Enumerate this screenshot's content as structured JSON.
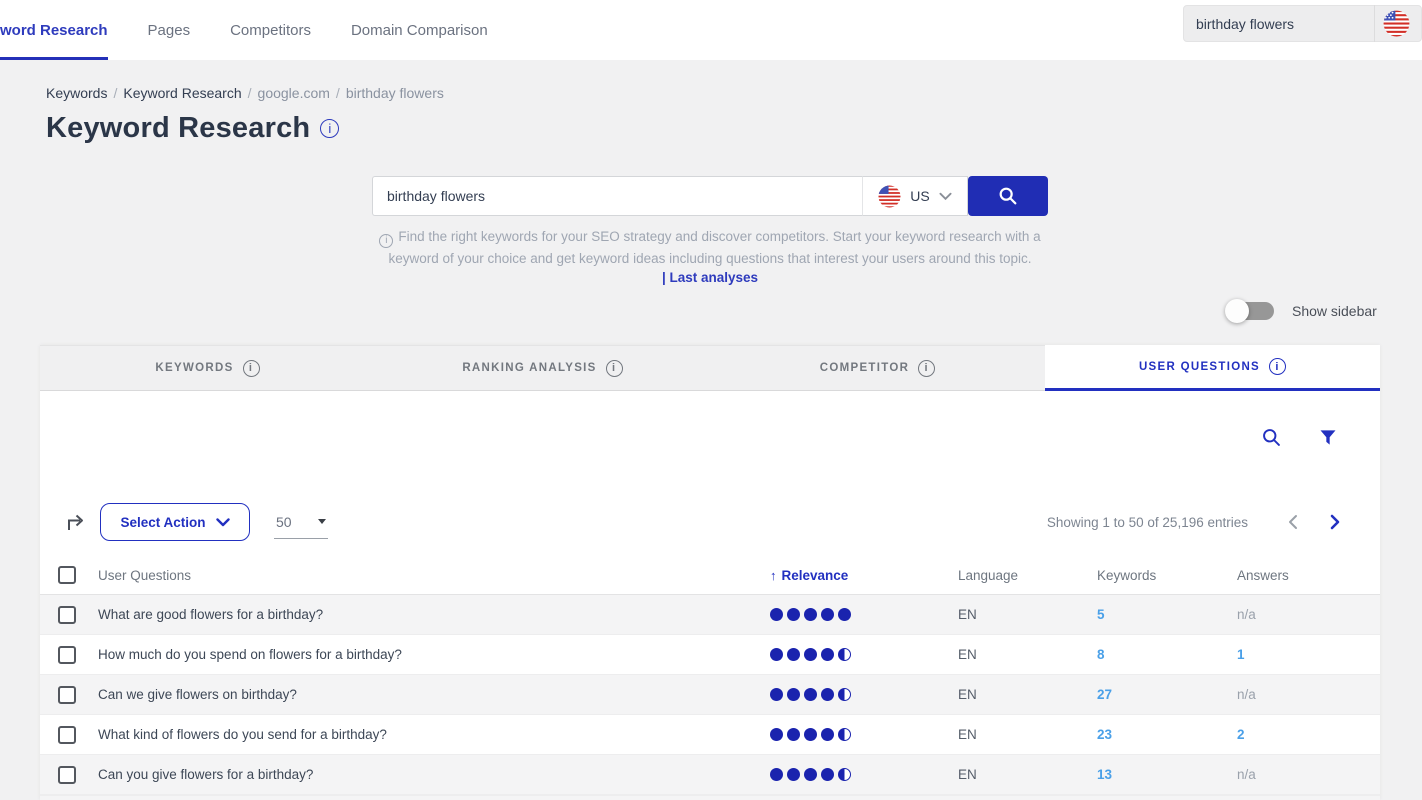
{
  "topnav": {
    "items": [
      {
        "label": "word Research",
        "active": true
      },
      {
        "label": "Pages",
        "active": false
      },
      {
        "label": "Competitors",
        "active": false
      },
      {
        "label": "Domain Comparison",
        "active": false
      }
    ],
    "search_value": "birthday flowers"
  },
  "breadcrumb": {
    "separator": "/",
    "items": [
      {
        "label": "Keywords",
        "muted": false
      },
      {
        "label": "Keyword Research",
        "muted": false
      },
      {
        "label": "google.com",
        "muted": true
      },
      {
        "label": "birthday flowers",
        "muted": true
      }
    ]
  },
  "page": {
    "title": "Keyword Research"
  },
  "search": {
    "value": "birthday flowers",
    "country": "US",
    "description_line1": "Find the right keywords for your SEO strategy and discover competitors. Start your keyword research with a",
    "description_line2": "keyword of your choice and get keyword ideas including questions that interest your users around this topic.",
    "last_analyses_label": "| Last analyses"
  },
  "sidebar_toggle": {
    "label": "Show sidebar",
    "state": "off"
  },
  "tabs": [
    {
      "label": "KEYWORDS",
      "active": false
    },
    {
      "label": "RANKING ANALYSIS",
      "active": false
    },
    {
      "label": "COMPETITOR",
      "active": false
    },
    {
      "label": "USER QUESTIONS",
      "active": true
    }
  ],
  "toolbar": {
    "select_action_label": "Select Action",
    "page_size": "50",
    "showing_text": "Showing 1 to 50 of 25,196 entries",
    "prev_enabled": false,
    "next_enabled": true
  },
  "table": {
    "columns": [
      "User Questions",
      "Relevance",
      "Language",
      "Keywords",
      "Answers"
    ],
    "sort_column": "Relevance",
    "sort_direction": "asc",
    "rows": [
      {
        "question": "What are good flowers for a birthday?",
        "relevance": 5,
        "language": "EN",
        "keywords": "5",
        "answers": "n/a"
      },
      {
        "question": "How much do you spend on flowers for a birthday?",
        "relevance": 4.5,
        "language": "EN",
        "keywords": "8",
        "answers": "1"
      },
      {
        "question": "Can we give flowers on birthday?",
        "relevance": 4.5,
        "language": "EN",
        "keywords": "27",
        "answers": "n/a"
      },
      {
        "question": "What kind of flowers do you send for a birthday?",
        "relevance": 4.5,
        "language": "EN",
        "keywords": "23",
        "answers": "2"
      },
      {
        "question": "Can you give flowers for a birthday?",
        "relevance": 4.5,
        "language": "EN",
        "keywords": "13",
        "answers": "n/a"
      }
    ]
  },
  "icons": {
    "us-flag-icon": "circular US flag",
    "search-icon": "magnifier",
    "filter-icon": "funnel",
    "info-icon": "circled i",
    "export-icon": "corner arrow right",
    "chevron-down-icon": "v",
    "chevron-left-icon": "<",
    "chevron-right-icon": ">",
    "sort-up-icon": "up arrow"
  },
  "colors": {
    "accent_blue": "#2230c0",
    "button_blue": "#202db4",
    "link_light_blue": "#4aa0e8",
    "dot_blue": "#1a23ae",
    "page_bg": "#f1f1f2"
  }
}
